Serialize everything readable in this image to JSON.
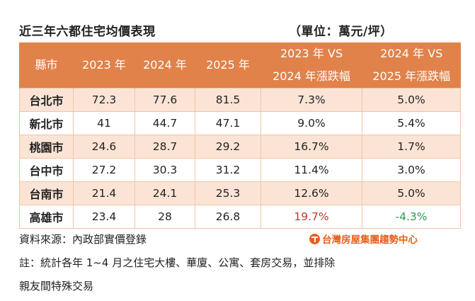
{
  "title": "近三年六都住宅均價表現",
  "unit": "（單位：萬元/坪）",
  "chart_data": {
    "type": "table",
    "columns": [
      "縣市",
      "2023 年",
      "2024 年",
      "2025 年",
      [
        "2023 年 VS",
        "2024 年漲跌幅"
      ],
      [
        "2024 年 VS",
        "2025 年漲跌幅"
      ]
    ],
    "rows": [
      {
        "city": "台北市",
        "y2023": "72.3",
        "y2024": "77.6",
        "y2025": "81.5",
        "chg1": "7.3%",
        "chg2": "5.0%"
      },
      {
        "city": "新北市",
        "y2023": "41",
        "y2024": "44.7",
        "y2025": "47.1",
        "chg1": "9.0%",
        "chg2": "5.4%"
      },
      {
        "city": "桃園市",
        "y2023": "24.6",
        "y2024": "28.7",
        "y2025": "29.2",
        "chg1": "16.7%",
        "chg2": "1.7%"
      },
      {
        "city": "台中市",
        "y2023": "27.2",
        "y2024": "30.3",
        "y2025": "31.2",
        "chg1": "11.4%",
        "chg2": "3.0%"
      },
      {
        "city": "台南市",
        "y2023": "21.4",
        "y2024": "24.1",
        "y2025": "25.3",
        "chg1": "12.6%",
        "chg2": "5.0%"
      },
      {
        "city": "高雄市",
        "y2023": "23.4",
        "y2024": "28",
        "y2025": "26.8",
        "chg1": "19.7%",
        "chg2": "-4.3%"
      }
    ],
    "highlights": {
      "max_increase_color": "#c0392b",
      "decrease_color": "#2e9a4a"
    },
    "header_color": "#e0824a",
    "band_color": "#fbe4d5"
  },
  "source": "資料來源：內政部實價登錄",
  "note_line1": "註：統計各年 1~4 月之住宅大樓、華廈、公寓、套房交易，並排除",
  "note_line2": "親友間特殊交易",
  "logo_text": "台灣房屋集團趨勢中心"
}
